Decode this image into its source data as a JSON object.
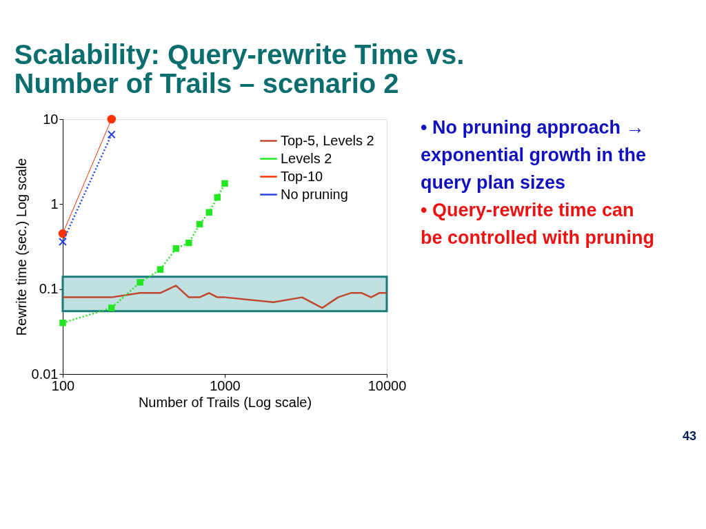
{
  "chart_data": {
    "type": "line",
    "title": "Scalability: Query-rewrite Time vs. Number of Trails – scenario 2",
    "xlabel": "Number of Trails (Log scale)",
    "ylabel": "Rewrite time (sec.) Log scale",
    "log": "xy",
    "xlim": [
      100,
      10000
    ],
    "xticks": [
      100,
      1000,
      10000
    ],
    "ylim": [
      0.01,
      10
    ],
    "yticks": [
      0.01,
      0.1,
      1,
      10
    ],
    "grid": false,
    "legend": "top right",
    "series": [
      {
        "name": "Top-5, Levels 2",
        "color": "#c0462c",
        "marker": "none",
        "line_style": "solid",
        "x": [
          100,
          200,
          300,
          400,
          500,
          600,
          700,
          800,
          900,
          1000,
          2000,
          3000,
          4000,
          5000,
          6000,
          7000,
          8000,
          9000,
          10000
        ],
        "values": [
          0.08,
          0.08,
          0.09,
          0.09,
          0.11,
          0.08,
          0.08,
          0.09,
          0.08,
          0.08,
          0.07,
          0.08,
          0.06,
          0.08,
          0.09,
          0.09,
          0.08,
          0.09,
          0.09
        ]
      },
      {
        "name": "Levels 2",
        "color": "#22e622",
        "marker": "square",
        "line_style": "dotted",
        "x": [
          100,
          200,
          300,
          400,
          500,
          600,
          700,
          800,
          900,
          1000
        ],
        "values": [
          0.04,
          0.06,
          0.12,
          0.17,
          0.3,
          0.35,
          0.58,
          0.8,
          1.2,
          1.75
        ]
      },
      {
        "name": "Top-10",
        "color": "#ff3300",
        "marker": "circle",
        "line_style": "solid",
        "x": [
          100,
          200
        ],
        "values": [
          0.45,
          10
        ]
      },
      {
        "name": "No pruning",
        "color": "#2244dd",
        "marker": "cross",
        "line_style": "dotted",
        "x": [
          100,
          200
        ],
        "values": [
          0.36,
          6.6
        ]
      }
    ],
    "bands": [
      {
        "axis": "y",
        "from": 0.055,
        "to": 0.14,
        "color": "#bfdfe0"
      }
    ],
    "annotations": [
      "• No pruning approach → exponential growth in the query plan sizes",
      "• Query-rewrite time can be controlled with pruning",
      "43"
    ]
  }
}
